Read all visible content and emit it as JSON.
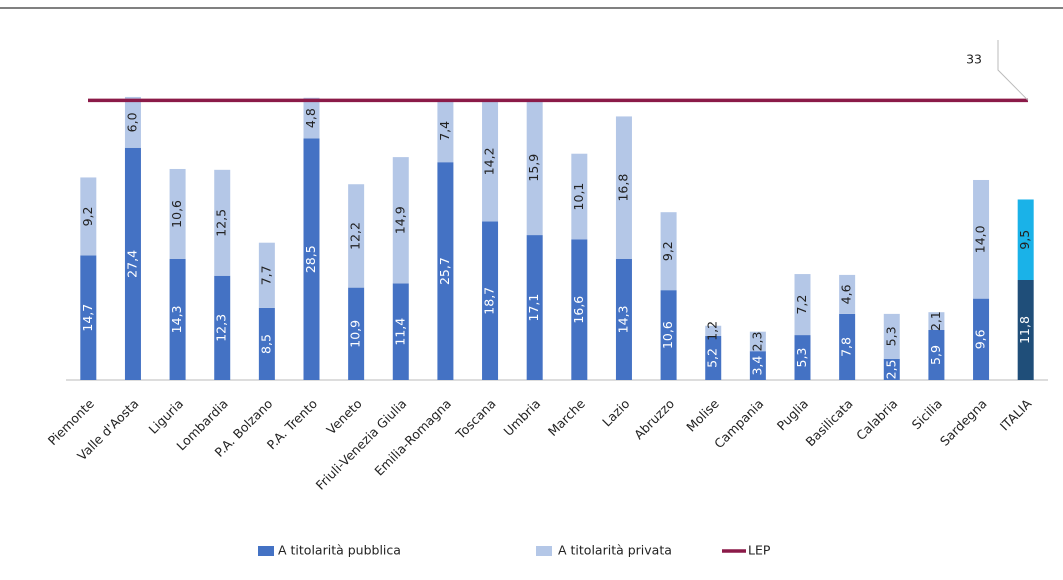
{
  "chart_data": {
    "type": "stacked_bar",
    "categories": [
      "Piemonte",
      "Valle d'Aosta",
      "Liguria",
      "Lombardia",
      "P.A. Bolzano",
      "P.A. Trento",
      "Veneto",
      "Friuli-Venezia Giulia",
      "Emilia-Romagna",
      "Toscana",
      "Umbria",
      "Marche",
      "Lazio",
      "Abruzzo",
      "Molise",
      "Campania",
      "Puglia",
      "Basilicata",
      "Calabria",
      "Sicilia",
      "Sardegna",
      "ITALIA"
    ],
    "series": [
      {
        "name": "A titolarità pubblica",
        "color": "#4472c4",
        "values": [
          14.7,
          27.4,
          14.3,
          12.3,
          8.5,
          28.5,
          10.9,
          11.4,
          25.7,
          18.7,
          17.1,
          16.6,
          14.3,
          10.6,
          5.2,
          3.4,
          5.3,
          7.8,
          2.5,
          5.9,
          9.6,
          11.8
        ],
        "value_labels": [
          "14,7",
          "27,4",
          "14,3",
          "12,3",
          "8,5",
          "28,5",
          "10,9",
          "11,4",
          "25,7",
          "18,7",
          "17,1",
          "16,6",
          "14,3",
          "10,6",
          "5,2",
          "3,4",
          "5,3",
          "7,8",
          "2,5",
          "5,9",
          "9,6",
          "11,8"
        ],
        "colors": [
          "#4472c4",
          "#4472c4",
          "#4472c4",
          "#4472c4",
          "#4472c4",
          "#4472c4",
          "#4472c4",
          "#4472c4",
          "#4472c4",
          "#4472c4",
          "#4472c4",
          "#4472c4",
          "#4472c4",
          "#4472c4",
          "#4472c4",
          "#4472c4",
          "#4472c4",
          "#4472c4",
          "#4472c4",
          "#4472c4",
          "#4472c4",
          "#1f4e79"
        ]
      },
      {
        "name": "A titolarità privata",
        "color": "#b4c7e7",
        "values": [
          9.2,
          6.0,
          10.6,
          12.5,
          7.7,
          4.8,
          12.2,
          14.9,
          7.4,
          14.2,
          15.9,
          10.1,
          16.8,
          9.2,
          1.2,
          2.3,
          7.2,
          4.6,
          5.3,
          2.1,
          14.0,
          9.5
        ],
        "value_labels": [
          "9,2",
          "6,0",
          "10,6",
          "12,5",
          "7,7",
          "4,8",
          "12,2",
          "14,9",
          "7,4",
          "14,2",
          "15,9",
          "10,1",
          "16,8",
          "9,2",
          "1,2",
          "2,3",
          "7,2",
          "4,6",
          "5,3",
          "2,1",
          "14,0",
          "9,5"
        ],
        "colors": [
          "#b4c7e7",
          "#b4c7e7",
          "#b4c7e7",
          "#b4c7e7",
          "#b4c7e7",
          "#b4c7e7",
          "#b4c7e7",
          "#b4c7e7",
          "#b4c7e7",
          "#b4c7e7",
          "#b4c7e7",
          "#b4c7e7",
          "#b4c7e7",
          "#b4c7e7",
          "#b4c7e7",
          "#b4c7e7",
          "#b4c7e7",
          "#b4c7e7",
          "#b4c7e7",
          "#b4c7e7",
          "#b4c7e7",
          "#1ab2e8"
        ]
      }
    ],
    "reference_line": {
      "name": "LEP",
      "color": "#8b1a48",
      "value": 33
    },
    "ylim": [
      0,
      40
    ]
  }
}
